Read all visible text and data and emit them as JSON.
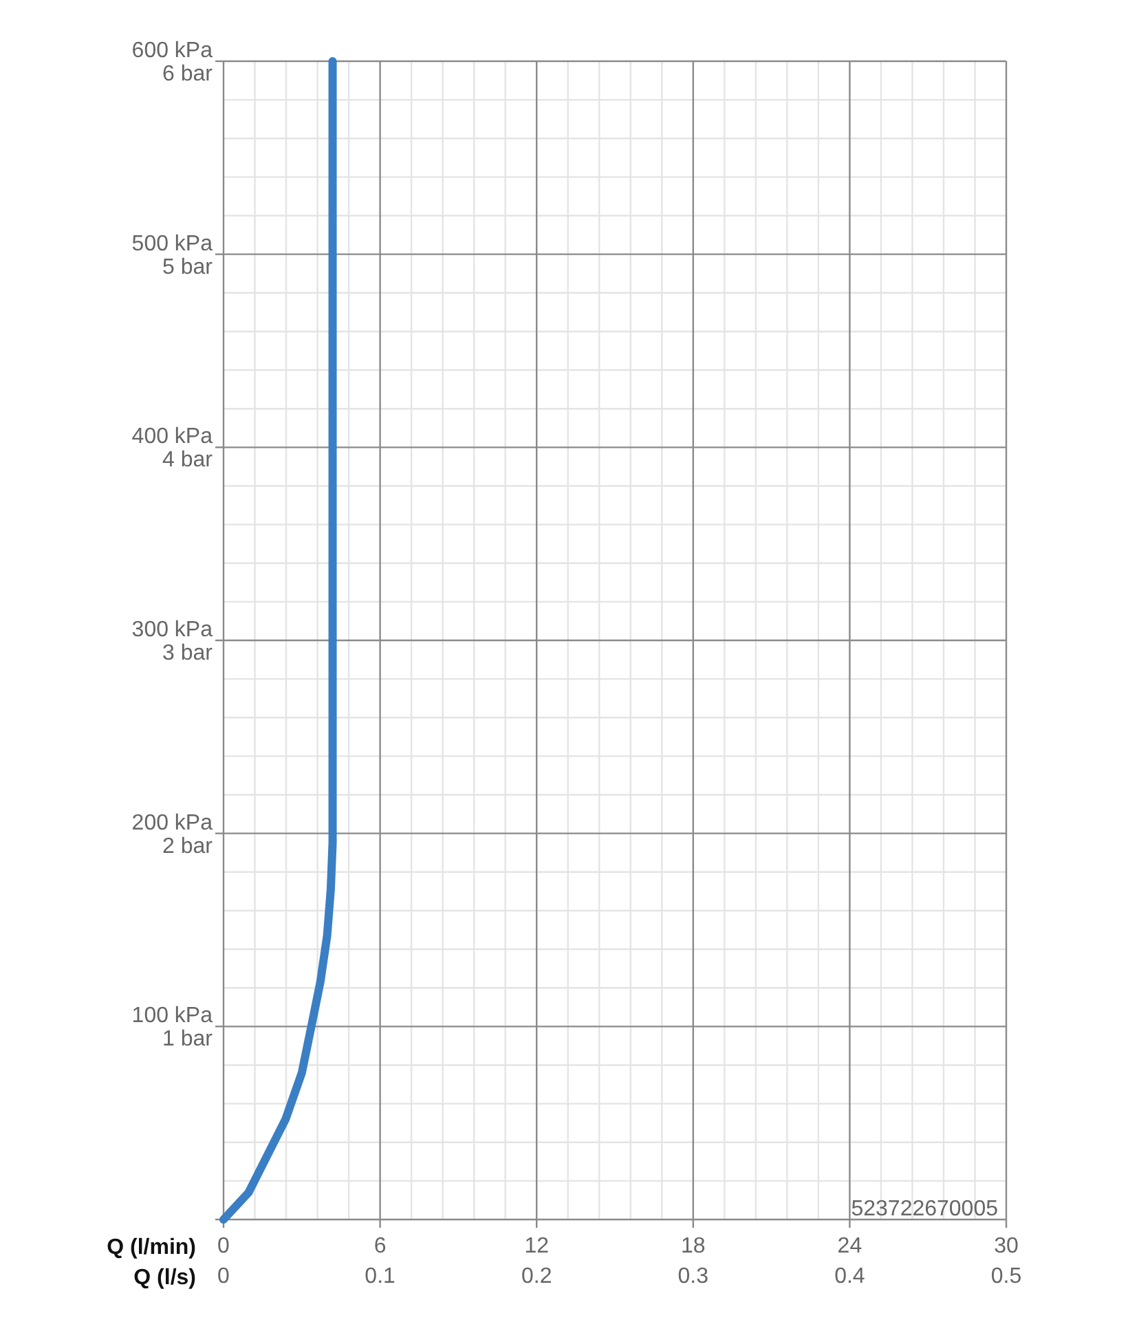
{
  "chart_data": {
    "type": "line",
    "xlabel": "Q (l/min)",
    "x2label": "Q (l/s)",
    "xlim": [
      0,
      30
    ],
    "xticks": [
      0,
      6,
      12,
      18,
      24,
      30
    ],
    "x2lim": [
      0,
      0.5
    ],
    "x2ticks": [
      0,
      0.1,
      0.2,
      0.3,
      0.4,
      0.5
    ],
    "ylim": [
      0,
      600
    ],
    "yticks": [
      {
        "value": 0,
        "label": null
      },
      {
        "value": 100,
        "label": "100 kPa"
      },
      {
        "value": 200,
        "label": "200 kPa"
      },
      {
        "value": 300,
        "label": "300 kPa"
      },
      {
        "value": 400,
        "label": "400 kPa"
      },
      {
        "value": 500,
        "label": "500 kPa"
      },
      {
        "value": 600,
        "label": "600 kPa"
      }
    ],
    "y2lim": [
      0,
      6
    ],
    "y2ticks": [
      {
        "value": 0,
        "label": null
      },
      {
        "value": 1,
        "label": "1 bar"
      },
      {
        "value": 2,
        "label": "2 bar"
      },
      {
        "value": 3,
        "label": "3 bar"
      },
      {
        "value": 4,
        "label": "4 bar"
      },
      {
        "value": 5,
        "label": "5 bar"
      },
      {
        "value": 6,
        "label": "6 bar"
      }
    ],
    "grid": true,
    "marker": "none",
    "line_style": "solid",
    "annotations": [
      "523722670005"
    ],
    "series": [
      {
        "color": "#3a7fc4",
        "x": [
          0,
          0.96,
          1.67,
          2.38,
          3.0,
          3.35,
          3.71,
          3.97,
          4.11,
          4.18,
          4.18,
          4.18
        ],
        "values": [
          0,
          14,
          33,
          52,
          76,
          99,
          123,
          147,
          171,
          195,
          200,
          600
        ]
      }
    ]
  }
}
